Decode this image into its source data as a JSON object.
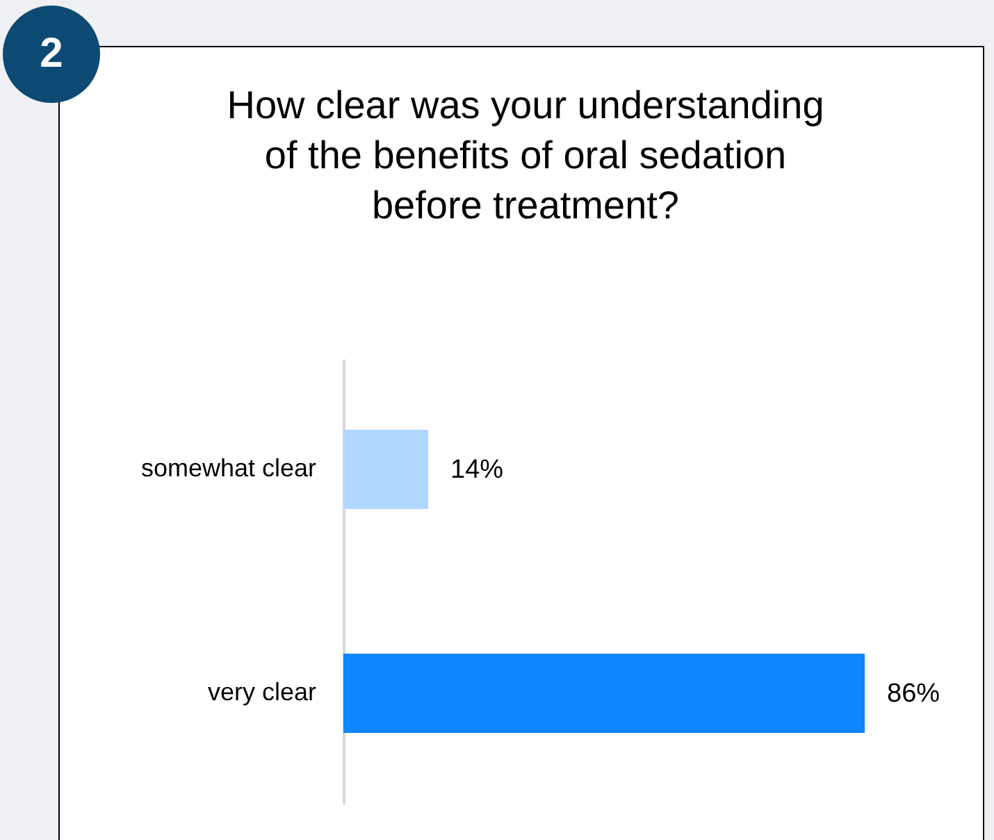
{
  "chart_data": {
    "type": "bar",
    "orientation": "horizontal",
    "title": "How clear was your understanding of the benefits of oral sedation before treatment?",
    "annotations": [
      "2"
    ],
    "categories": [
      "somewhat clear",
      "very clear"
    ],
    "values": [
      14,
      86
    ],
    "colors": [
      "#b0d8fe",
      "#0e86fd"
    ],
    "value_labels": [
      "14%",
      "86%"
    ]
  }
}
